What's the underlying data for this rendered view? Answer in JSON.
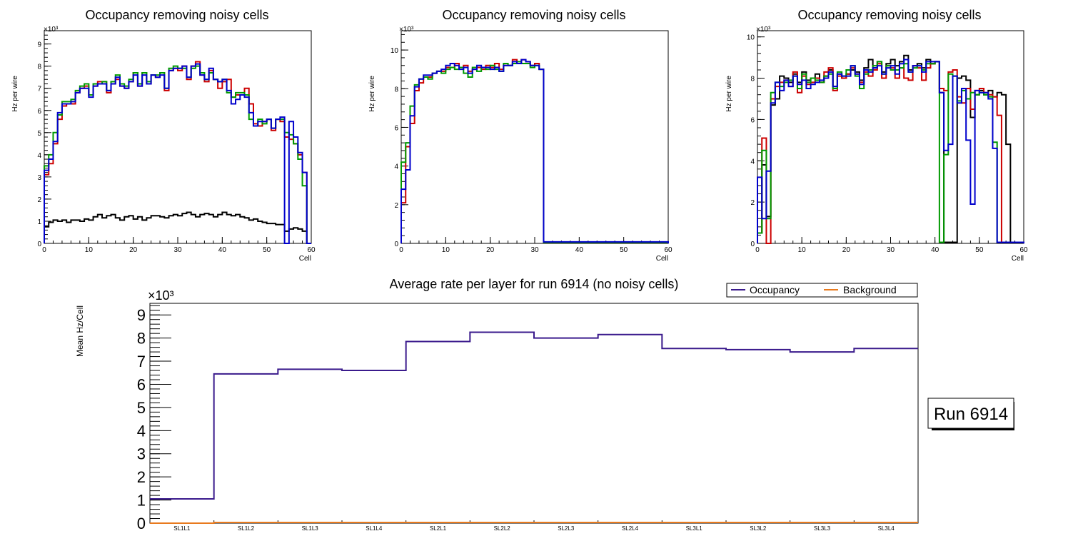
{
  "chart_data": [
    {
      "type": "line",
      "title": "Occupancy removing noisy cells",
      "xlabel": "Cell",
      "ylabel": "Hz per wire",
      "y_exponent": "×10³",
      "xlim": [
        0,
        60
      ],
      "ylim": [
        0,
        9.6
      ],
      "xticks": [
        0,
        10,
        20,
        30,
        40,
        50,
        60
      ],
      "yticks": [
        0,
        1,
        2,
        3,
        4,
        5,
        6,
        7,
        8,
        9
      ],
      "series": [
        {
          "name": "black",
          "color": "#000000",
          "values": [
            0.75,
            0.95,
            1.05,
            1.0,
            1.05,
            0.95,
            1.05,
            1.05,
            1.0,
            1.1,
            1.05,
            1.2,
            1.3,
            1.15,
            1.25,
            1.3,
            1.15,
            1.05,
            1.2,
            1.25,
            1.1,
            1.2,
            1.05,
            1.15,
            1.25,
            1.25,
            1.2,
            1.15,
            1.25,
            1.3,
            1.25,
            1.35,
            1.4,
            1.3,
            1.2,
            1.3,
            1.35,
            1.3,
            1.2,
            1.3,
            1.4,
            1.3,
            1.25,
            1.3,
            1.2,
            1.15,
            1.05,
            1.1,
            1.0,
            0.95,
            0.9,
            0.9,
            0.85,
            0.85,
            0.55,
            0.65,
            0.7,
            0.65,
            0.55,
            0.0
          ]
        },
        {
          "name": "red",
          "color": "#cc0000",
          "values": [
            3.1,
            3.6,
            4.5,
            5.6,
            6.2,
            6.3,
            6.3,
            6.8,
            7.0,
            7.1,
            6.7,
            7.1,
            7.3,
            7.3,
            6.8,
            7.2,
            7.4,
            7.1,
            7.0,
            7.3,
            7.7,
            7.1,
            7.7,
            7.2,
            7.6,
            7.5,
            7.7,
            6.9,
            7.8,
            7.9,
            7.8,
            8.0,
            7.4,
            8.0,
            8.2,
            7.6,
            7.3,
            7.8,
            7.4,
            7.0,
            7.3,
            7.4,
            6.6,
            6.7,
            6.7,
            7.0,
            6.3,
            5.4,
            5.3,
            5.5,
            5.6,
            5.1,
            5.6,
            5.5,
            4.8,
            4.7,
            4.5,
            4.0,
            3.2,
            0.0
          ]
        },
        {
          "name": "green",
          "color": "#009900",
          "values": [
            3.5,
            4.0,
            5.0,
            5.8,
            6.4,
            6.4,
            6.5,
            6.9,
            7.1,
            7.2,
            6.7,
            7.2,
            7.2,
            7.3,
            6.9,
            7.3,
            7.6,
            7.2,
            7.1,
            7.4,
            7.7,
            7.2,
            7.7,
            7.3,
            7.6,
            7.6,
            7.7,
            7.0,
            7.9,
            8.0,
            7.9,
            7.9,
            7.5,
            7.9,
            8.0,
            7.7,
            7.4,
            7.7,
            7.4,
            7.3,
            7.4,
            6.8,
            6.6,
            6.8,
            6.8,
            6.7,
            5.6,
            5.3,
            5.6,
            5.4,
            5.6,
            5.2,
            5.6,
            5.6,
            5.0,
            4.9,
            4.5,
            3.8,
            2.6,
            0.0
          ]
        },
        {
          "name": "blue",
          "color": "#0000cc",
          "values": [
            3.3,
            3.8,
            4.6,
            5.9,
            6.3,
            6.3,
            6.4,
            6.8,
            7.0,
            7.0,
            6.6,
            7.1,
            7.2,
            7.2,
            6.9,
            7.2,
            7.5,
            7.1,
            7.0,
            7.3,
            7.6,
            7.1,
            7.6,
            7.2,
            7.6,
            7.5,
            7.6,
            7.0,
            7.8,
            7.9,
            7.9,
            8.0,
            7.5,
            8.0,
            8.1,
            7.6,
            7.4,
            7.9,
            7.4,
            7.3,
            7.4,
            6.9,
            6.3,
            6.5,
            6.7,
            6.6,
            5.9,
            5.3,
            5.5,
            5.5,
            5.6,
            5.2,
            5.6,
            5.7,
            0.0,
            5.5,
            4.8,
            4.1,
            3.2,
            0.0
          ]
        }
      ]
    },
    {
      "type": "line",
      "title": "Occupancy removing noisy cells",
      "xlabel": "Cell",
      "ylabel": "Hz per wire",
      "y_exponent": "×10³",
      "xlim": [
        0,
        60
      ],
      "ylim": [
        0,
        11
      ],
      "xticks": [
        0,
        10,
        20,
        30,
        40,
        50,
        60
      ],
      "yticks": [
        0,
        2,
        4,
        6,
        8,
        10
      ],
      "series": [
        {
          "name": "red",
          "color": "#cc0000",
          "values": [
            2.1,
            5.0,
            6.2,
            7.9,
            8.3,
            8.6,
            8.6,
            8.8,
            8.9,
            8.9,
            9.1,
            9.1,
            9.3,
            9.1,
            9.2,
            8.9,
            9.0,
            9.1,
            9.0,
            9.2,
            9.1,
            9.3,
            9.0,
            9.2,
            9.2,
            9.5,
            9.3,
            9.5,
            9.4,
            9.2,
            9.3,
            9.0,
            0.05,
            0.05,
            0.05,
            0.05,
            0.05,
            0.05,
            0.05,
            0.05,
            0.05,
            0.05,
            0.05,
            0.05,
            0.05,
            0.05,
            0.05,
            0.05,
            0.05,
            0.05,
            0.05,
            0.05,
            0.05,
            0.05,
            0.05,
            0.05,
            0.05,
            0.05,
            0.05,
            0.05
          ]
        },
        {
          "name": "green",
          "color": "#009900",
          "values": [
            4.2,
            5.2,
            7.1,
            8.2,
            8.5,
            8.6,
            8.5,
            8.8,
            8.9,
            8.8,
            9.0,
            9.1,
            9.0,
            9.1,
            8.8,
            8.6,
            9.1,
            8.9,
            9.1,
            9.0,
            9.2,
            9.0,
            8.9,
            9.3,
            9.2,
            9.3,
            9.4,
            9.3,
            9.3,
            9.1,
            9.2,
            9.0,
            0.05,
            0.05,
            0.05,
            0.05,
            0.05,
            0.05,
            0.05,
            0.05,
            0.05,
            0.05,
            0.05,
            0.05,
            0.05,
            0.05,
            0.05,
            0.05,
            0.05,
            0.05,
            0.05,
            0.05,
            0.05,
            0.05,
            0.05,
            0.05,
            0.05,
            0.05,
            0.05,
            0.05
          ]
        },
        {
          "name": "blue",
          "color": "#0000cc",
          "values": [
            2.8,
            3.8,
            6.6,
            8.1,
            8.5,
            8.7,
            8.7,
            8.8,
            8.9,
            9.0,
            9.2,
            9.3,
            9.2,
            9.0,
            9.1,
            8.8,
            9.0,
            9.2,
            9.1,
            9.1,
            9.0,
            9.1,
            8.9,
            9.2,
            9.2,
            9.4,
            9.3,
            9.5,
            9.4,
            9.2,
            9.2,
            9.0,
            0.08,
            0.08,
            0.08,
            0.08,
            0.08,
            0.08,
            0.08,
            0.08,
            0.08,
            0.08,
            0.08,
            0.08,
            0.08,
            0.08,
            0.08,
            0.08,
            0.08,
            0.08,
            0.08,
            0.08,
            0.08,
            0.08,
            0.08,
            0.08,
            0.08,
            0.08,
            0.08,
            0.08
          ]
        }
      ]
    },
    {
      "type": "line",
      "title": "Occupancy removing noisy cells",
      "xlabel": "Cell",
      "ylabel": "Hz per wire",
      "y_exponent": "×10³",
      "xlim": [
        0,
        60
      ],
      "ylim": [
        0,
        10.3
      ],
      "xticks": [
        0,
        10,
        20,
        30,
        40,
        50,
        60
      ],
      "yticks": [
        0,
        2,
        4,
        6,
        8,
        10
      ],
      "series": [
        {
          "name": "black",
          "color": "#000000",
          "values": [
            0.5,
            3.8,
            1.3,
            6.7,
            7.0,
            8.1,
            8.0,
            7.8,
            8.2,
            7.8,
            8.3,
            7.9,
            8.0,
            8.2,
            7.8,
            8.1,
            8.4,
            7.6,
            8.2,
            8.0,
            8.2,
            8.4,
            8.3,
            7.9,
            8.5,
            8.9,
            8.5,
            8.8,
            8.3,
            8.7,
            8.9,
            8.6,
            8.8,
            9.1,
            8.4,
            8.6,
            8.7,
            8.5,
            8.9,
            8.7,
            8.8,
            7.3,
            0.05,
            0.05,
            0.05,
            8.0,
            8.1,
            7.9,
            6.1,
            7.2,
            7.4,
            7.2,
            7.4,
            7.1,
            7.3,
            7.2,
            4.8,
            0.05,
            0.05,
            0.05
          ]
        },
        {
          "name": "red",
          "color": "#cc0000",
          "values": [
            0.5,
            5.1,
            0.0,
            7.0,
            7.6,
            7.8,
            7.9,
            7.6,
            8.3,
            7.3,
            8.1,
            7.7,
            7.8,
            8.0,
            7.8,
            8.3,
            8.5,
            7.4,
            8.1,
            8.0,
            8.2,
            8.5,
            8.2,
            7.8,
            8.3,
            8.1,
            8.4,
            8.7,
            8.0,
            8.6,
            8.5,
            8.0,
            8.5,
            8.0,
            7.9,
            8.6,
            8.5,
            7.9,
            8.5,
            8.7,
            8.8,
            7.5,
            7.4,
            8.3,
            8.4,
            7.1,
            6.8,
            7.5,
            6.5,
            7.4,
            7.5,
            7.3,
            7.2,
            7.1,
            6.2,
            0.05,
            0.05,
            0.05,
            0.05,
            0.05
          ]
        },
        {
          "name": "green",
          "color": "#009900",
          "values": [
            0.5,
            4.5,
            1.2,
            7.3,
            7.8,
            7.6,
            7.8,
            7.9,
            8.1,
            7.5,
            8.2,
            7.8,
            8.0,
            7.9,
            7.8,
            8.1,
            8.2,
            7.5,
            8.3,
            8.1,
            8.4,
            8.6,
            8.1,
            7.5,
            8.2,
            8.4,
            8.6,
            8.8,
            8.2,
            8.6,
            8.4,
            8.4,
            8.5,
            8.7,
            8.3,
            8.5,
            8.6,
            8.4,
            8.7,
            8.7,
            8.8,
            0.05,
            4.3,
            8.2,
            8.1,
            6.9,
            7.4,
            7.0,
            7.3,
            7.2,
            7.3,
            7.2,
            7.1,
            4.9,
            0.05,
            0.05,
            0.05,
            0.05,
            0.05,
            0.05
          ]
        },
        {
          "name": "blue",
          "color": "#0000cc",
          "values": [
            3.2,
            1.2,
            3.5,
            6.8,
            7.8,
            7.4,
            7.9,
            7.6,
            8.1,
            7.7,
            7.9,
            7.5,
            7.7,
            7.8,
            7.9,
            8.0,
            8.3,
            7.6,
            8.2,
            8.1,
            8.1,
            8.6,
            8.2,
            7.7,
            8.4,
            8.3,
            8.5,
            8.6,
            8.2,
            8.5,
            8.6,
            8.2,
            8.7,
            8.9,
            8.3,
            8.6,
            8.6,
            8.3,
            8.8,
            8.8,
            8.8,
            7.3,
            4.5,
            4.8,
            8.1,
            6.8,
            7.5,
            5.0,
            1.9,
            7.4,
            7.3,
            7.3,
            7.0,
            4.6,
            0.05,
            0.05,
            0.05,
            0.05,
            0.05,
            0.05
          ]
        }
      ]
    },
    {
      "type": "line",
      "title": "Average rate per layer for run 6914 (no noisy cells)",
      "xlabel": "",
      "ylabel": "Mean Hz/Cell",
      "y_exponent": "×10³",
      "ylim": [
        0,
        9.5
      ],
      "yticks": [
        0,
        1,
        2,
        3,
        4,
        5,
        6,
        7,
        8,
        9
      ],
      "categories": [
        "SL1L1",
        "SL1L2",
        "SL1L3",
        "SL1L4",
        "SL2L1",
        "SL2L2",
        "SL2L3",
        "SL2L4",
        "SL3L1",
        "SL3L2",
        "SL3L3",
        "SL3L4"
      ],
      "series": [
        {
          "name": "Occupancy",
          "color": "#3a1a8c",
          "values": [
            1.05,
            6.45,
            6.65,
            6.6,
            7.85,
            8.25,
            8.0,
            8.15,
            7.55,
            7.5,
            7.4,
            7.55
          ]
        },
        {
          "name": "Background",
          "color": "#e87a1e",
          "values": [
            0.0,
            0.03,
            0.03,
            0.03,
            0.03,
            0.03,
            0.03,
            0.03,
            0.03,
            0.03,
            0.03,
            0.03
          ]
        }
      ],
      "legend": [
        "Occupancy",
        "Background"
      ],
      "annotation": "Run 6914"
    }
  ]
}
